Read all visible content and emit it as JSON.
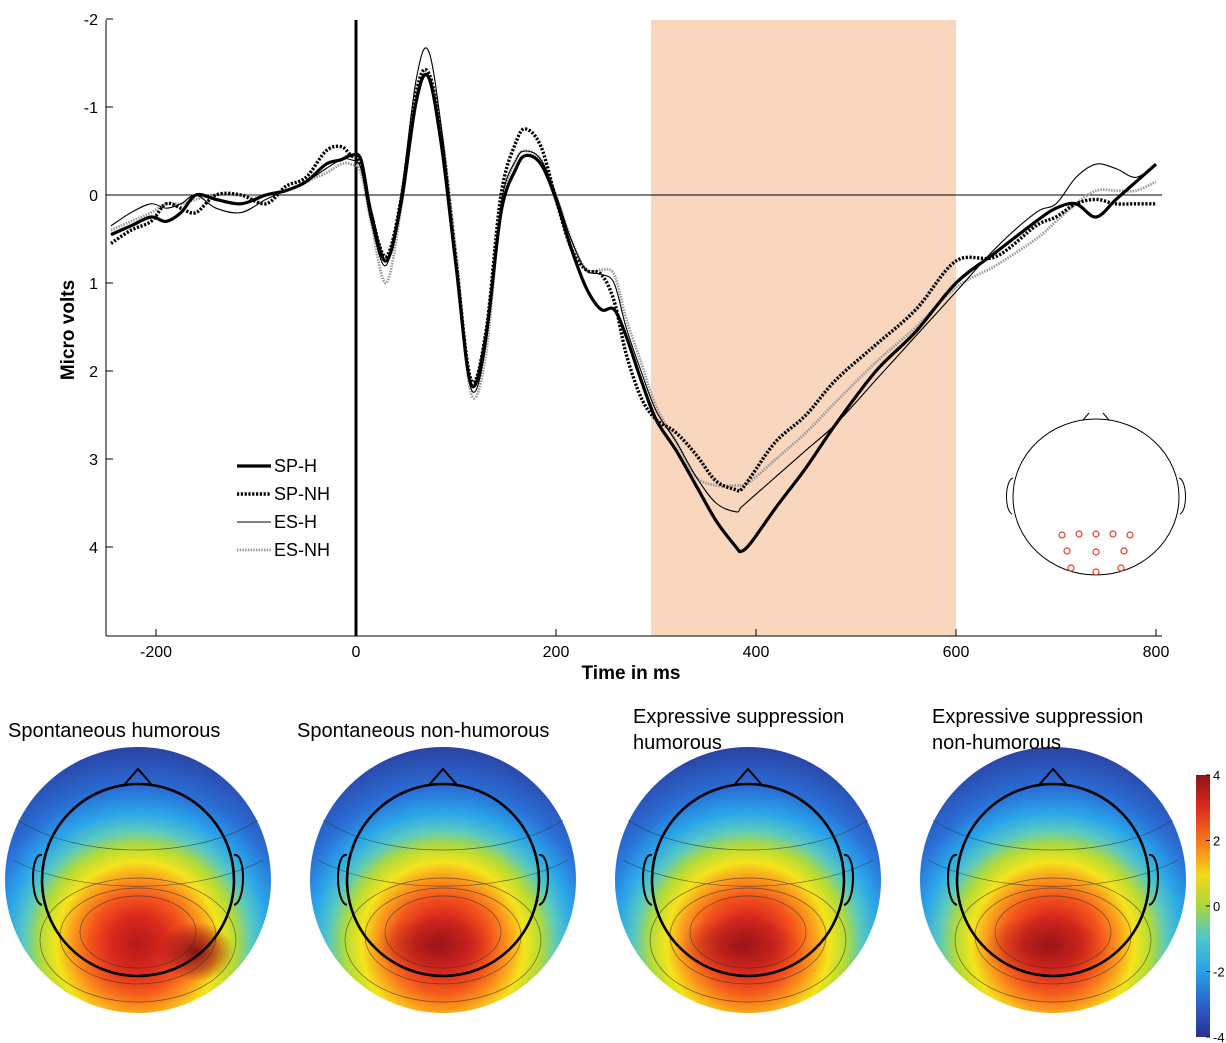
{
  "colors": {
    "window_shade": "#f9d6be",
    "sensor": "#e8392b",
    "line": "#000000",
    "es_nh": "#9a9a9a"
  },
  "chart_data": [
    {
      "type": "line",
      "title": "",
      "xlabel": "Time in ms",
      "ylabel": "Micro volts",
      "xlim": [
        -250,
        805
      ],
      "ylim": [
        -2.1,
        5.0
      ],
      "y_inverted": true,
      "xticks": [
        -200,
        0,
        200,
        400,
        600,
        800
      ],
      "yticks": [
        -2,
        -1,
        0,
        1,
        2,
        3,
        4
      ],
      "highlight_window": [
        295,
        600
      ],
      "onset_line_x": 0,
      "zero_line": true,
      "legend_placement": "lower-left",
      "series": [
        {
          "name": "SP-H",
          "style": "thick-solid",
          "x": [
            -245,
            -225,
            -205,
            -190,
            -175,
            -160,
            -140,
            -115,
            -90,
            -70,
            -50,
            -30,
            -15,
            -5,
            5,
            15,
            30,
            45,
            60,
            72,
            85,
            100,
            115,
            130,
            145,
            160,
            170,
            185,
            200,
            215,
            230,
            245,
            258,
            270,
            285,
            300,
            320,
            340,
            360,
            380,
            385,
            395,
            420,
            450,
            480,
            520,
            560,
            600,
            640,
            680,
            700,
            720,
            740,
            760,
            780,
            800
          ],
          "y": [
            0.45,
            0.35,
            0.25,
            0.3,
            0.2,
            0.0,
            0.05,
            0.1,
            0.0,
            -0.05,
            -0.15,
            -0.35,
            -0.4,
            -0.45,
            -0.4,
            0.2,
            0.75,
            0.1,
            -1.05,
            -1.35,
            -0.6,
            0.8,
            2.15,
            1.6,
            0.2,
            -0.3,
            -0.45,
            -0.35,
            0.05,
            0.6,
            1.05,
            1.3,
            1.3,
            1.6,
            2.1,
            2.55,
            2.9,
            3.3,
            3.7,
            4.0,
            4.05,
            3.95,
            3.55,
            3.1,
            2.6,
            2.0,
            1.55,
            1.0,
            0.65,
            0.3,
            0.15,
            0.1,
            0.25,
            0.05,
            -0.15,
            -0.35
          ]
        },
        {
          "name": "SP-NH",
          "style": "thick-dotted",
          "x": [
            -245,
            -225,
            -205,
            -190,
            -175,
            -160,
            -140,
            -115,
            -90,
            -70,
            -50,
            -30,
            -15,
            -5,
            5,
            15,
            30,
            45,
            60,
            72,
            85,
            100,
            115,
            130,
            145,
            160,
            170,
            185,
            200,
            215,
            230,
            245,
            258,
            270,
            285,
            300,
            320,
            340,
            360,
            380,
            385,
            395,
            420,
            450,
            480,
            520,
            560,
            600,
            640,
            680,
            700,
            720,
            740,
            760,
            780,
            800
          ],
          "y": [
            0.55,
            0.4,
            0.3,
            0.1,
            0.15,
            0.2,
            0.0,
            0.0,
            0.1,
            -0.1,
            -0.2,
            -0.5,
            -0.55,
            -0.45,
            -0.35,
            0.2,
            0.7,
            0.05,
            -1.15,
            -1.4,
            -0.7,
            0.75,
            2.1,
            1.55,
            0.0,
            -0.6,
            -0.75,
            -0.55,
            0.05,
            0.6,
            0.85,
            0.9,
            1.2,
            1.8,
            2.3,
            2.55,
            2.7,
            2.95,
            3.25,
            3.35,
            3.35,
            3.2,
            2.8,
            2.5,
            2.1,
            1.7,
            1.3,
            0.75,
            0.7,
            0.35,
            0.25,
            0.1,
            0.05,
            0.1,
            0.1,
            0.1
          ]
        },
        {
          "name": "ES-H",
          "style": "thin-solid",
          "x": [
            -245,
            -225,
            -205,
            -190,
            -175,
            -160,
            -140,
            -115,
            -90,
            -70,
            -50,
            -30,
            -15,
            -5,
            5,
            15,
            30,
            45,
            60,
            72,
            85,
            100,
            115,
            130,
            145,
            160,
            170,
            185,
            200,
            215,
            230,
            245,
            258,
            270,
            285,
            300,
            320,
            340,
            360,
            380,
            385,
            395,
            420,
            450,
            480,
            520,
            560,
            600,
            640,
            680,
            700,
            720,
            740,
            760,
            780,
            800
          ],
          "y": [
            0.35,
            0.2,
            0.1,
            0.15,
            0.1,
            0.0,
            0.15,
            0.2,
            0.05,
            -0.05,
            -0.15,
            -0.3,
            -0.4,
            -0.4,
            -0.3,
            0.3,
            0.8,
            0.0,
            -1.3,
            -1.65,
            -0.8,
            0.75,
            2.2,
            1.7,
            0.1,
            -0.4,
            -0.5,
            -0.4,
            0.0,
            0.5,
            0.85,
            0.9,
            1.0,
            1.5,
            2.0,
            2.45,
            2.8,
            3.2,
            3.5,
            3.6,
            3.55,
            3.45,
            3.2,
            2.9,
            2.6,
            2.1,
            1.6,
            1.1,
            0.6,
            0.2,
            0.1,
            -0.2,
            -0.35,
            -0.3,
            -0.2,
            -0.35
          ]
        },
        {
          "name": "ES-NH",
          "style": "thin-dotted-gray",
          "x": [
            -245,
            -225,
            -205,
            -190,
            -175,
            -160,
            -140,
            -115,
            -90,
            -70,
            -50,
            -30,
            -15,
            -5,
            5,
            15,
            30,
            45,
            60,
            72,
            85,
            100,
            115,
            130,
            145,
            160,
            170,
            185,
            200,
            215,
            230,
            245,
            258,
            270,
            285,
            300,
            320,
            340,
            360,
            380,
            385,
            395,
            420,
            450,
            480,
            520,
            560,
            600,
            640,
            680,
            700,
            720,
            740,
            760,
            780,
            800
          ],
          "y": [
            0.4,
            0.3,
            0.2,
            0.1,
            0.1,
            0.05,
            0.0,
            0.0,
            0.0,
            -0.05,
            -0.15,
            -0.25,
            -0.35,
            -0.35,
            -0.25,
            0.3,
            1.0,
            0.15,
            -1.1,
            -1.35,
            -0.75,
            0.65,
            2.25,
            1.8,
            0.15,
            -0.4,
            -0.5,
            -0.4,
            0.0,
            0.5,
            0.85,
            0.85,
            0.9,
            1.4,
            1.9,
            2.4,
            2.8,
            3.2,
            3.3,
            3.3,
            3.3,
            3.25,
            3.0,
            2.7,
            2.35,
            1.9,
            1.5,
            1.05,
            0.8,
            0.5,
            0.3,
            0.1,
            -0.05,
            -0.05,
            -0.05,
            -0.15
          ]
        }
      ]
    },
    {
      "type": "heatmap",
      "title": "",
      "colorbar_range": [
        -4,
        4
      ],
      "colorbar_ticks": [
        "4",
        "2",
        "0",
        "-2",
        "-4"
      ],
      "panels": [
        {
          "title_lines": [
            "Spontaneous humorous"
          ],
          "peak_right": true
        },
        {
          "title_lines": [
            "Spontaneous non-humorous"
          ],
          "peak_right": false
        },
        {
          "title_lines": [
            "Expressive suppression",
            "humorous"
          ],
          "peak_right": false
        },
        {
          "title_lines": [
            "Expressive suppression",
            "non-humorous"
          ],
          "peak_right": false
        }
      ]
    }
  ]
}
